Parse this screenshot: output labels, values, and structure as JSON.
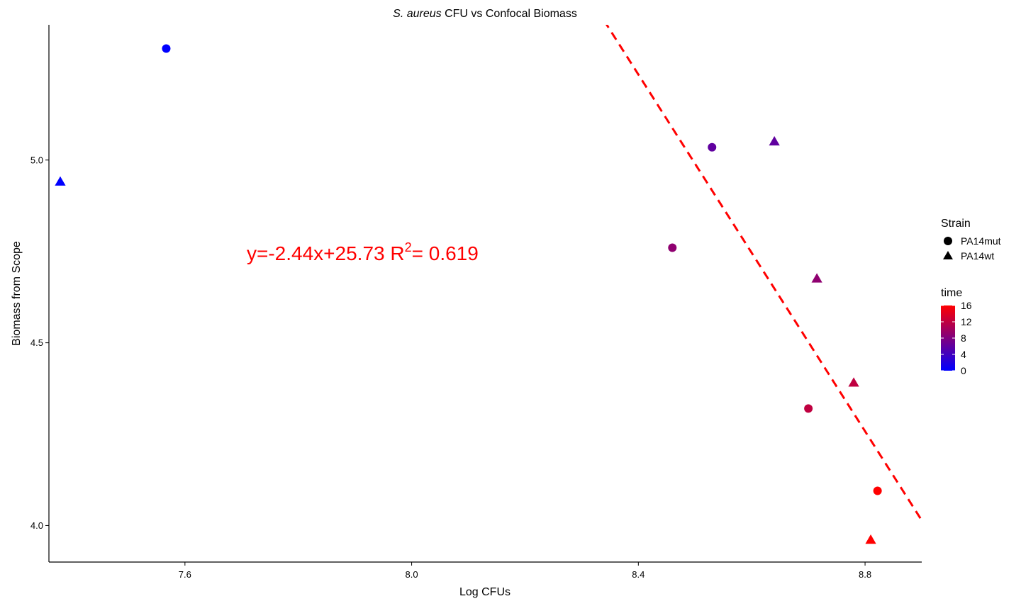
{
  "colors": {
    "low": "#0000FF",
    "high": "#FF0000",
    "trendline": "#FF0000",
    "equation": "#FF0000",
    "axis": "#000000"
  },
  "chart_data": {
    "type": "scatter",
    "title_italic": "S. aureus",
    "title_rest": " CFU vs Confocal Biomass",
    "xlabel": "Log CFUs",
    "ylabel": "Biomass from Scope",
    "xlim": [
      7.36,
      8.9
    ],
    "ylim": [
      3.9,
      5.37
    ],
    "xticks": [
      {
        "value": 7.6,
        "label": "7.6"
      },
      {
        "value": 8.0,
        "label": "8.0"
      },
      {
        "value": 8.4,
        "label": "8.4"
      },
      {
        "value": 8.8,
        "label": "8.8"
      }
    ],
    "yticks": [
      {
        "value": 4.0,
        "label": "4.0"
      },
      {
        "value": 4.5,
        "label": "4.5"
      },
      {
        "value": 5.0,
        "label": "5.0"
      }
    ],
    "grid": false,
    "points": [
      {
        "x": 7.567,
        "y": 5.305,
        "strain": "PA14mut",
        "time": 0
      },
      {
        "x": 7.38,
        "y": 4.94,
        "strain": "PA14wt",
        "time": 0
      },
      {
        "x": 8.53,
        "y": 5.035,
        "strain": "PA14mut",
        "time": 6
      },
      {
        "x": 8.64,
        "y": 5.05,
        "strain": "PA14wt",
        "time": 6
      },
      {
        "x": 8.46,
        "y": 4.76,
        "strain": "PA14mut",
        "time": 9
      },
      {
        "x": 8.715,
        "y": 4.675,
        "strain": "PA14wt",
        "time": 9
      },
      {
        "x": 8.7,
        "y": 4.32,
        "strain": "PA14mut",
        "time": 12
      },
      {
        "x": 8.78,
        "y": 4.39,
        "strain": "PA14wt",
        "time": 12
      },
      {
        "x": 8.822,
        "y": 4.095,
        "strain": "PA14mut",
        "time": 16
      },
      {
        "x": 8.81,
        "y": 3.96,
        "strain": "PA14wt",
        "time": 16
      }
    ],
    "trendline": {
      "slope": -2.44,
      "intercept": 25.73,
      "style": "dashed"
    },
    "equation": {
      "main": "y=-2.44x+25.73  R",
      "sup": "2",
      "tail": "= 0.619"
    },
    "legend_shape": {
      "title": "Strain",
      "placement": "right",
      "items": [
        {
          "label": "PA14mut",
          "shape": "circle"
        },
        {
          "label": "PA14wt",
          "shape": "triangle"
        }
      ]
    },
    "legend_color": {
      "title": "time",
      "placement": "right",
      "range": [
        0,
        16
      ],
      "ticks": [
        {
          "value": 16,
          "label": "16"
        },
        {
          "value": 12,
          "label": "12"
        },
        {
          "value": 8,
          "label": "8"
        },
        {
          "value": 4,
          "label": "4"
        },
        {
          "value": 0,
          "label": "0"
        }
      ]
    }
  }
}
